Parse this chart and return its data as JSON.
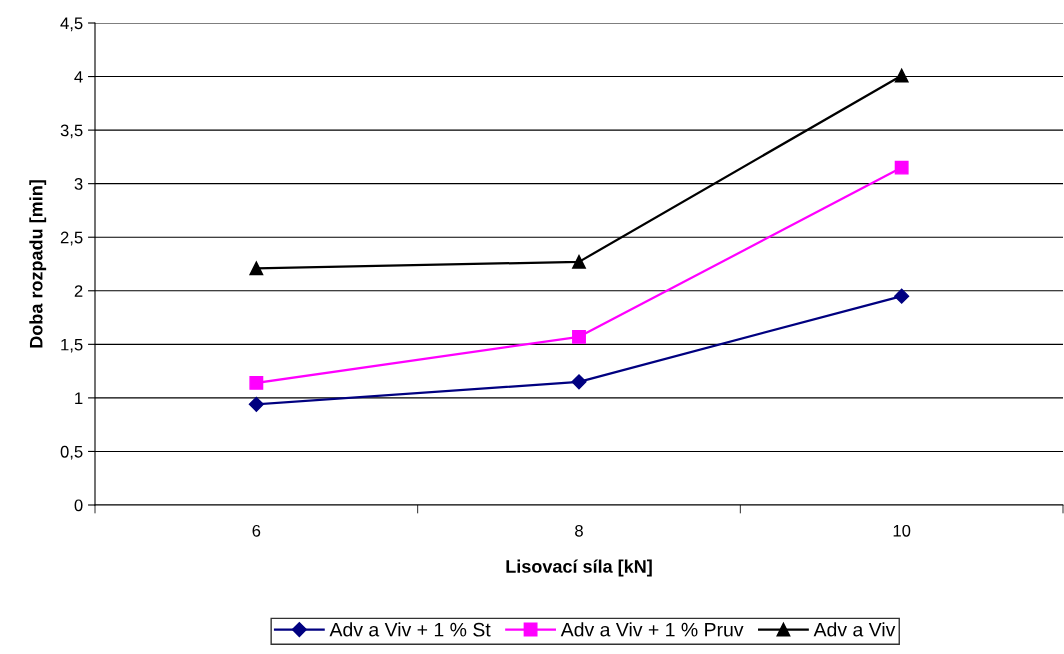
{
  "chart_data": {
    "type": "line",
    "xlabel": "Lisovací síla [kN]",
    "ylabel": "Doba rozpadu [min]",
    "categories": [
      "6",
      "8",
      "10"
    ],
    "series": [
      {
        "name": "Adv a Viv + 1 % St",
        "color": "#000080",
        "marker": "diamond",
        "values": [
          0.94,
          1.15,
          1.95
        ]
      },
      {
        "name": "Adv a Viv + 1 % Pruv",
        "color": "#ff00ff",
        "marker": "square",
        "values": [
          1.14,
          1.57,
          3.15
        ]
      },
      {
        "name": "Adv a Viv",
        "color": "#000000",
        "marker": "triangle",
        "values": [
          2.21,
          2.27,
          4.01
        ]
      }
    ],
    "ylim": [
      0,
      4.5
    ],
    "yticks": [
      0,
      {
        "value": 0.5,
        "label": "0,5"
      },
      1,
      {
        "value": 1.5,
        "label": "1,5"
      },
      2,
      {
        "value": 2.5,
        "label": "2,5"
      },
      3,
      {
        "value": 3.5,
        "label": "3,5"
      },
      4,
      {
        "value": 4.5,
        "label": "4,5"
      }
    ],
    "grid": "y",
    "legend": "bottom",
    "line_style": "solid"
  }
}
